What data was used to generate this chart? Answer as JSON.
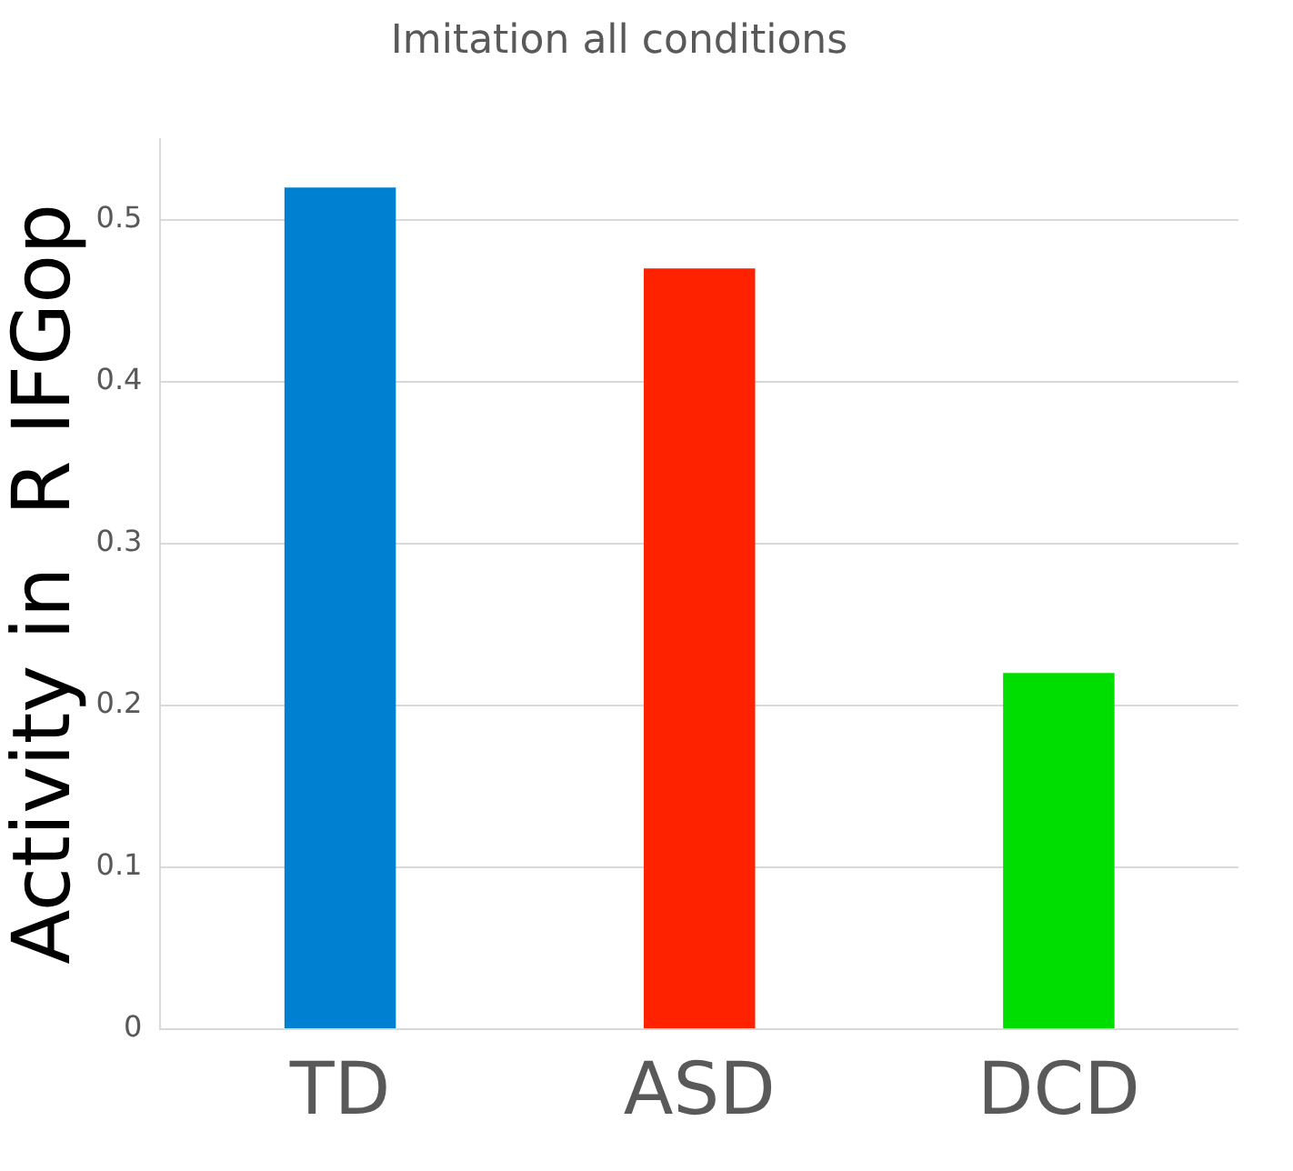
{
  "chart_data": {
    "type": "bar",
    "title": "Imitation all conditions",
    "ylabel": "Activity in  R IFGop",
    "categories": [
      "TD",
      "ASD",
      "DCD"
    ],
    "values": [
      0.52,
      0.47,
      0.22
    ],
    "colors": [
      "#0080d0",
      "#ff2200",
      "#00dd00"
    ],
    "ylim": [
      0,
      0.55
    ],
    "yticks": [
      0,
      0.1,
      0.2,
      0.3,
      0.4,
      0.5
    ],
    "grid": "y",
    "legend": false
  }
}
